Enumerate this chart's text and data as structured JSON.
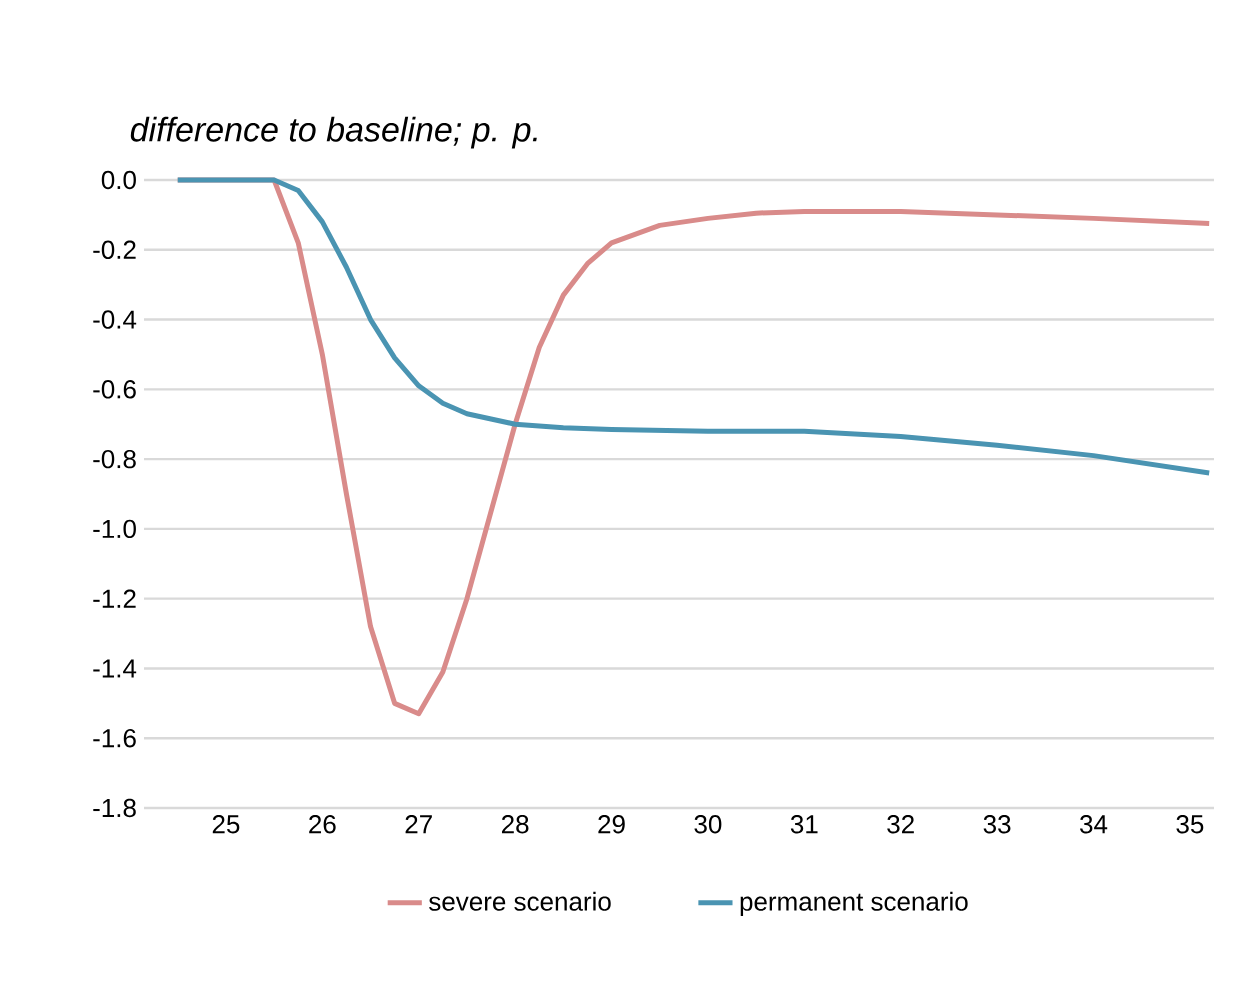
{
  "chart_data": {
    "type": "line",
    "title": "*difference to baseline; p. p.*",
    "xlim": [
      24.15,
      35.25
    ],
    "xticks": [
      25,
      26,
      27,
      28,
      29,
      30,
      31,
      32,
      33,
      34,
      35
    ],
    "ylim": [
      -1.8,
      0
    ],
    "yticks": [
      {
        "value": 0,
        "label": "0.0"
      },
      -0.2,
      -0.4,
      -0.6,
      -0.8,
      {
        "value": -1.0,
        "label": "-1.0"
      },
      -1.2,
      -1.4,
      -1.6,
      -1.8
    ],
    "grid": "y",
    "legend": "bottom",
    "line_style": "solid",
    "marker": "none",
    "series": [
      {
        "name": "severe scenario",
        "color": "#d98b8a",
        "x": [
          24.5,
          25,
          25.5,
          25.75,
          26,
          26.25,
          26.5,
          26.75,
          27,
          27.25,
          27.5,
          27.75,
          28,
          28.25,
          28.5,
          28.75,
          29,
          29.5,
          30,
          30.5,
          31,
          32,
          33,
          34,
          35.2
        ],
        "values": [
          0,
          0,
          0,
          -0.18,
          -0.5,
          -0.9,
          -1.28,
          -1.5,
          -1.53,
          -1.41,
          -1.2,
          -0.95,
          -0.7,
          -0.48,
          -0.33,
          -0.24,
          -0.18,
          -0.13,
          -0.11,
          -0.095,
          -0.09,
          -0.09,
          -0.1,
          -0.11,
          -0.125
        ]
      },
      {
        "name": "permanent scenario",
        "color": "#4a94b2",
        "x": [
          24.5,
          25,
          25.5,
          25.75,
          26,
          26.25,
          26.5,
          26.75,
          27,
          27.25,
          27.5,
          28,
          28.5,
          29,
          30,
          31,
          32,
          33,
          34,
          35.2
        ],
        "values": [
          0,
          0,
          0,
          -0.03,
          -0.12,
          -0.25,
          -0.4,
          -0.51,
          -0.59,
          -0.64,
          -0.67,
          -0.7,
          -0.71,
          -0.715,
          -0.72,
          -0.72,
          -0.735,
          -0.76,
          -0.79,
          -0.84
        ]
      }
    ]
  }
}
